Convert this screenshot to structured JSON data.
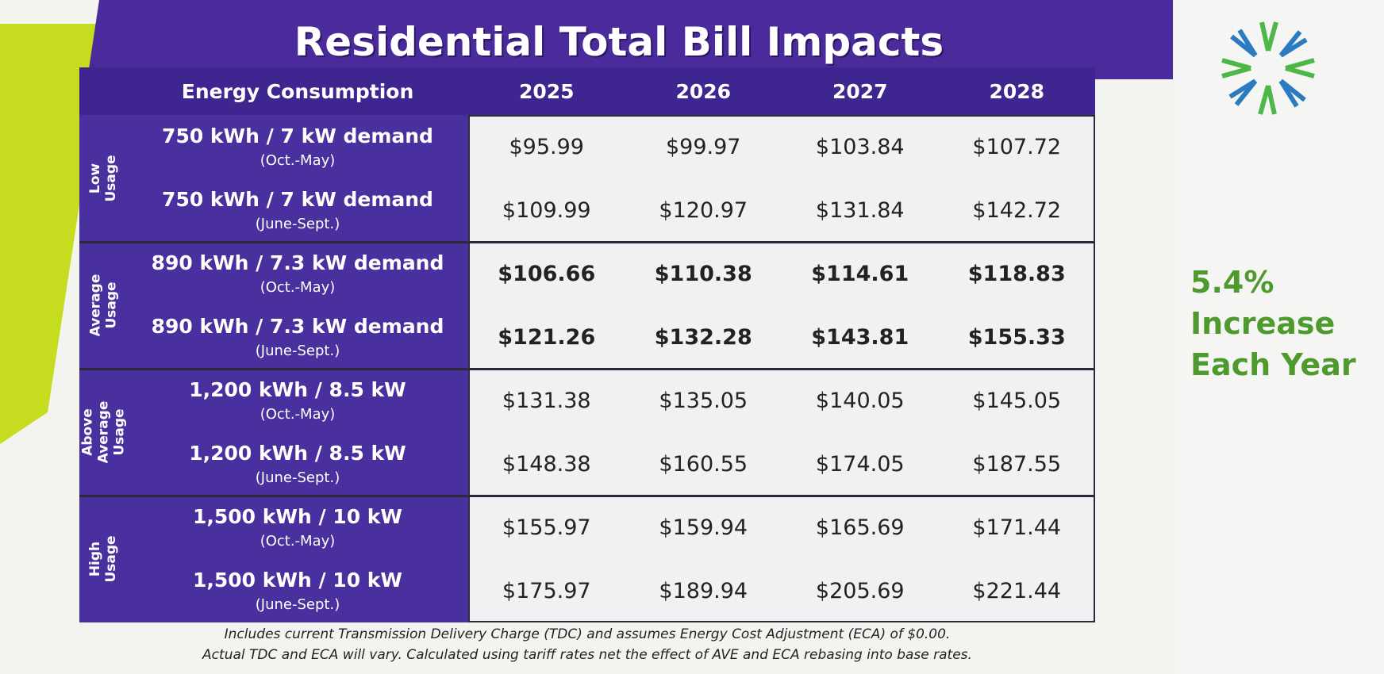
{
  "title": "Residential Total Bill Impacts",
  "table": {
    "header": [
      "Energy Consumption",
      "2025",
      "2026",
      "2027",
      "2028"
    ],
    "groups": [
      {
        "label": "Low Usage",
        "rows": [
          {
            "consumption": "750 kWh /  7 kW demand",
            "period": "(Oct.-May)",
            "values": [
              "$95.99",
              "$99.97",
              "$103.84",
              "$107.72"
            ]
          },
          {
            "consumption": "750 kWh /  7 kW demand",
            "period": "(June-Sept.)",
            "values": [
              "$109.99",
              "$120.97",
              "$131.84",
              "$142.72"
            ]
          }
        ]
      },
      {
        "label": "Average Usage",
        "rows": [
          {
            "consumption": "890 kWh /  7.3 kW demand",
            "period": "(Oct.-May)",
            "values": [
              "$106.66",
              "$110.38",
              "$114.61",
              "$118.83"
            ]
          },
          {
            "consumption": "890 kWh /  7.3 kW demand",
            "period": "(June-Sept.)",
            "values": [
              "$121.26",
              "$132.28",
              "$143.81",
              "$155.33"
            ]
          }
        ]
      },
      {
        "label": "Above Average Usage",
        "rows": [
          {
            "consumption": "1,200 kWh / 8.5 kW",
            "period": "(Oct.-May)",
            "values": [
              "$131.38",
              "$135.05",
              "$140.05",
              "$145.05"
            ]
          },
          {
            "consumption": "1,200 kWh / 8.5 kW",
            "period": "(June-Sept.)",
            "values": [
              "$148.38",
              "$160.55",
              "$174.05",
              "$187.55"
            ]
          }
        ]
      },
      {
        "label": "High Usage",
        "rows": [
          {
            "consumption": "1,500 kWh / 10 kW",
            "period": "(Oct.-May)",
            "values": [
              "$155.97",
              "$159.94",
              "$165.69",
              "$171.44"
            ]
          },
          {
            "consumption": "1,500 kWh / 10 kW",
            "period": "(June-Sept.)",
            "values": [
              "$175.97",
              "$189.94",
              "$205.69",
              "$221.44"
            ]
          }
        ]
      }
    ]
  },
  "callout": [
    "5.4%",
    "Increase",
    "Each Year"
  ],
  "footnote": [
    "Includes current Transmission Delivery Charge (TDC) and assumes Energy Cost Adjustment (ECA) of $0.00.",
    "Actual TDC and ECA will vary. Calculated using tariff rates net the effect of AVE and ECA rebasing into base rates."
  ]
}
